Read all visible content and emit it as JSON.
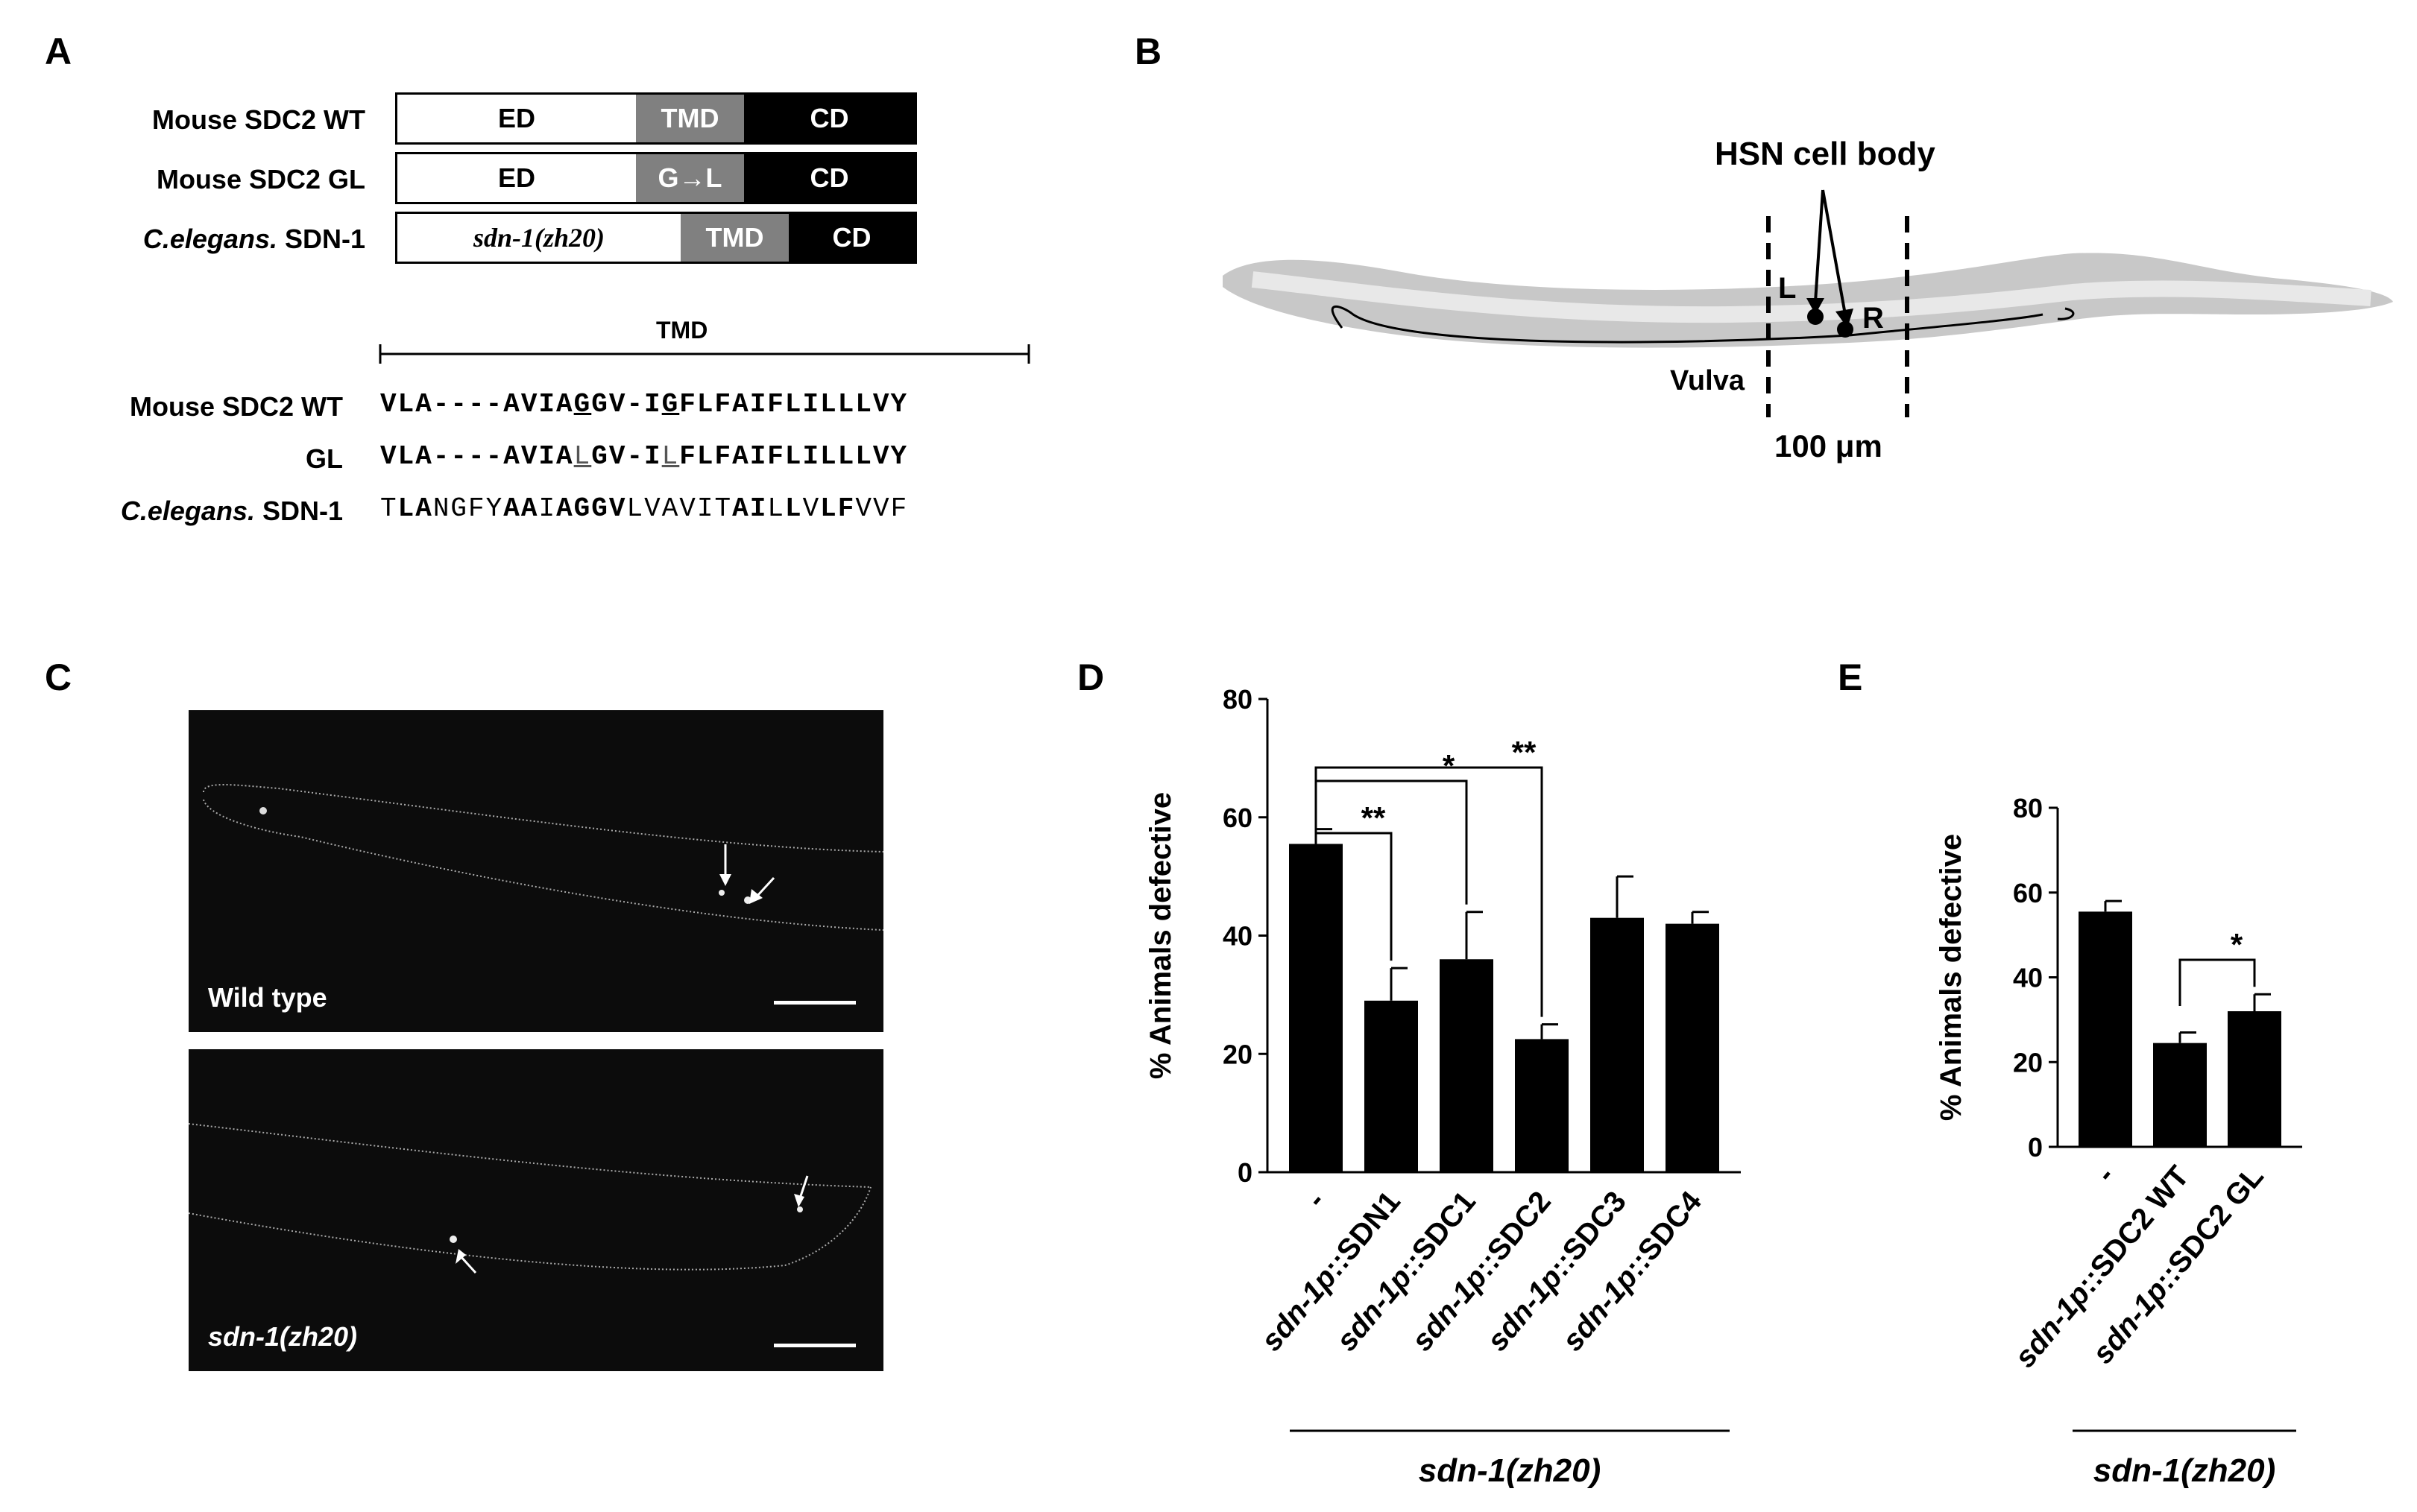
{
  "panels": {
    "a": "A",
    "b": "B",
    "c": "C",
    "d": "D",
    "e": "E"
  },
  "panel_a": {
    "rows": [
      {
        "label": "Mouse  SDC2 WT",
        "italic": false,
        "domains": [
          {
            "text": "ED",
            "style": "white"
          },
          {
            "text": "TMD",
            "style": "grey"
          },
          {
            "text": "CD",
            "style": "black"
          }
        ]
      },
      {
        "label": "Mouse  SDC2 GL",
        "italic": false,
        "domains": [
          {
            "text": "ED",
            "style": "white"
          },
          {
            "text": "G→L",
            "style": "grey"
          },
          {
            "text": "CD",
            "style": "black"
          }
        ]
      },
      {
        "label_italic": "C.elegans.",
        "label_rest": " SDN-1",
        "domains": [
          {
            "text": "sdn-1(zh20)",
            "style": "white-italic"
          },
          {
            "text": "TMD",
            "style": "grey"
          },
          {
            "text": "CD",
            "style": "black"
          }
        ]
      }
    ],
    "tmd_bracket_label": "TMD",
    "alignment": [
      {
        "label": "Mouse  SDC2 WT",
        "seq": "VLA----AVIAGGV-IGFLFAIFLILLLVY"
      },
      {
        "label": "GL",
        "seq": "VLA----AVIALGV-ILFLFAIFLILLLVY"
      },
      {
        "label_italic": "C.elegans.",
        "label_rest": " SDN-1",
        "seq": "TLANGFYAAIAGGVLVAVITAILLVLFVVF"
      }
    ]
  },
  "panel_b": {
    "title": "HSN cell body",
    "left": "L",
    "right": "R",
    "vulva": "Vulva",
    "scale": "100 μm"
  },
  "panel_c": {
    "top_label": "Wild type",
    "bottom_label": "sdn-1(zh20)"
  },
  "chart_data": [
    {
      "type": "bar",
      "panel": "D",
      "ylabel": "% Animals defective",
      "ylim": [
        0,
        80
      ],
      "yticks": [
        "0",
        "20",
        "40",
        "60",
        "80"
      ],
      "categories": [
        "-",
        "sdn-1p::SDN1",
        "sdn-1p::SDC1",
        "sdn-1p::SDC2",
        "sdn-1p::SDC3",
        "sdn-1p::SDC4"
      ],
      "values": [
        55.5,
        29,
        36,
        22.5,
        43,
        42
      ],
      "errors": [
        2.5,
        5.5,
        8,
        2.5,
        7,
        2
      ],
      "group_label": "sdn-1(zh20)",
      "significance": [
        {
          "from": 0,
          "to": 1,
          "label": "**"
        },
        {
          "from": 0,
          "to": 2,
          "label": "*"
        },
        {
          "from": 0,
          "to": 3,
          "label": "**"
        }
      ]
    },
    {
      "type": "bar",
      "panel": "E",
      "ylabel": "% Animals defective",
      "ylim": [
        0,
        80
      ],
      "yticks": [
        "0",
        "20",
        "40",
        "60",
        "80"
      ],
      "categories": [
        "-",
        "sdn-1p::SDC2 WT",
        "sdn-1p::SDC2 GL"
      ],
      "values": [
        55.5,
        24.5,
        32
      ],
      "errors": [
        2.5,
        2.5,
        4
      ],
      "group_label": "sdn-1(zh20)",
      "significance": [
        {
          "from": 1,
          "to": 2,
          "label": "*"
        }
      ]
    }
  ]
}
